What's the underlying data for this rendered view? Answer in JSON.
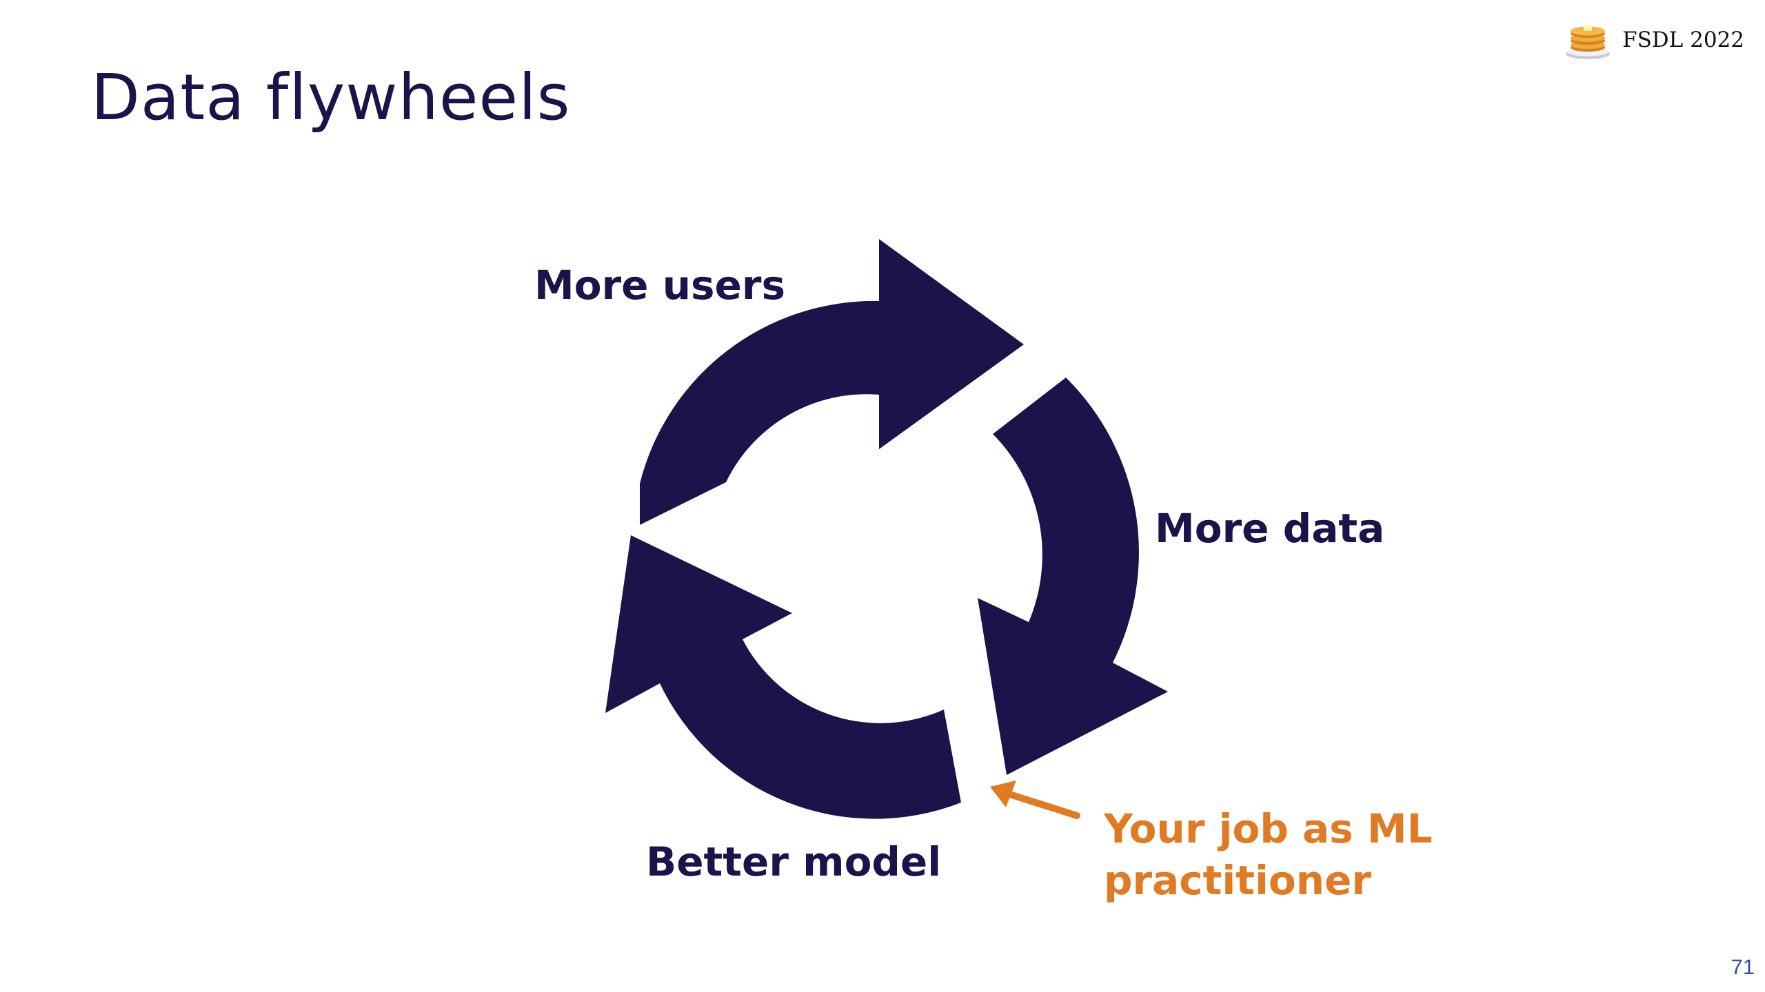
{
  "slide": {
    "title": "Data flywheels",
    "page_number": "71"
  },
  "brand": {
    "text": "FSDL 2022",
    "logo_icon": "pancake-stack-icon"
  },
  "diagram": {
    "type": "cycle",
    "nodes": [
      {
        "id": "users",
        "label": "More users"
      },
      {
        "id": "data",
        "label": "More data"
      },
      {
        "id": "model",
        "label": "Better model"
      }
    ],
    "cycle_color": "#1b144b",
    "callout": {
      "line1": "Your job as ML",
      "line2": "practitioner",
      "color": "#e07a23",
      "points_to": "model"
    }
  }
}
